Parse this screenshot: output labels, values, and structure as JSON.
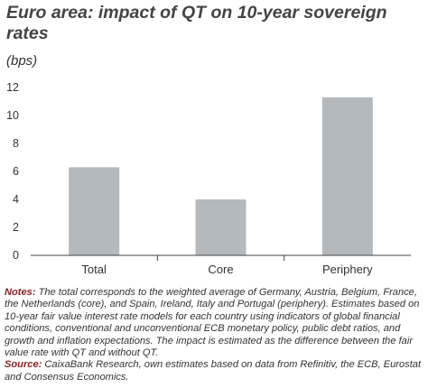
{
  "title": "Euro area: impact of QT on 10-year sovereign rates",
  "unit": "(bps)",
  "chart_data": {
    "type": "bar",
    "categories": [
      "Total",
      "Core",
      "Periphery"
    ],
    "values": [
      6.3,
      4.0,
      11.3
    ],
    "ylim": [
      0,
      12
    ],
    "yticks": [
      0,
      2,
      4,
      6,
      8,
      10,
      12
    ],
    "grid": false,
    "bar_color": "#b3b9bd"
  },
  "notes": {
    "notes_label": "Notes:",
    "notes_text": " The total corresponds to the weighted average of Germany, Austria, Belgium, France, the Netherlands (core), and Spain, Ireland, Italy and Portugal (periphery). Estimates based on 10-year fair value interest rate models for each country using indicators of global financial conditions, conventional and unconventional ECB monetary policy, public debt ratios, and growth and inflation expectations. The impact is estimated as the difference between the fair value rate with QT and without QT.",
    "source_label": "Source:",
    "source_text": " CaixaBank Research, own estimates based on data from Refinitiv, the ECB, Eurostat and Consensus Economics."
  }
}
